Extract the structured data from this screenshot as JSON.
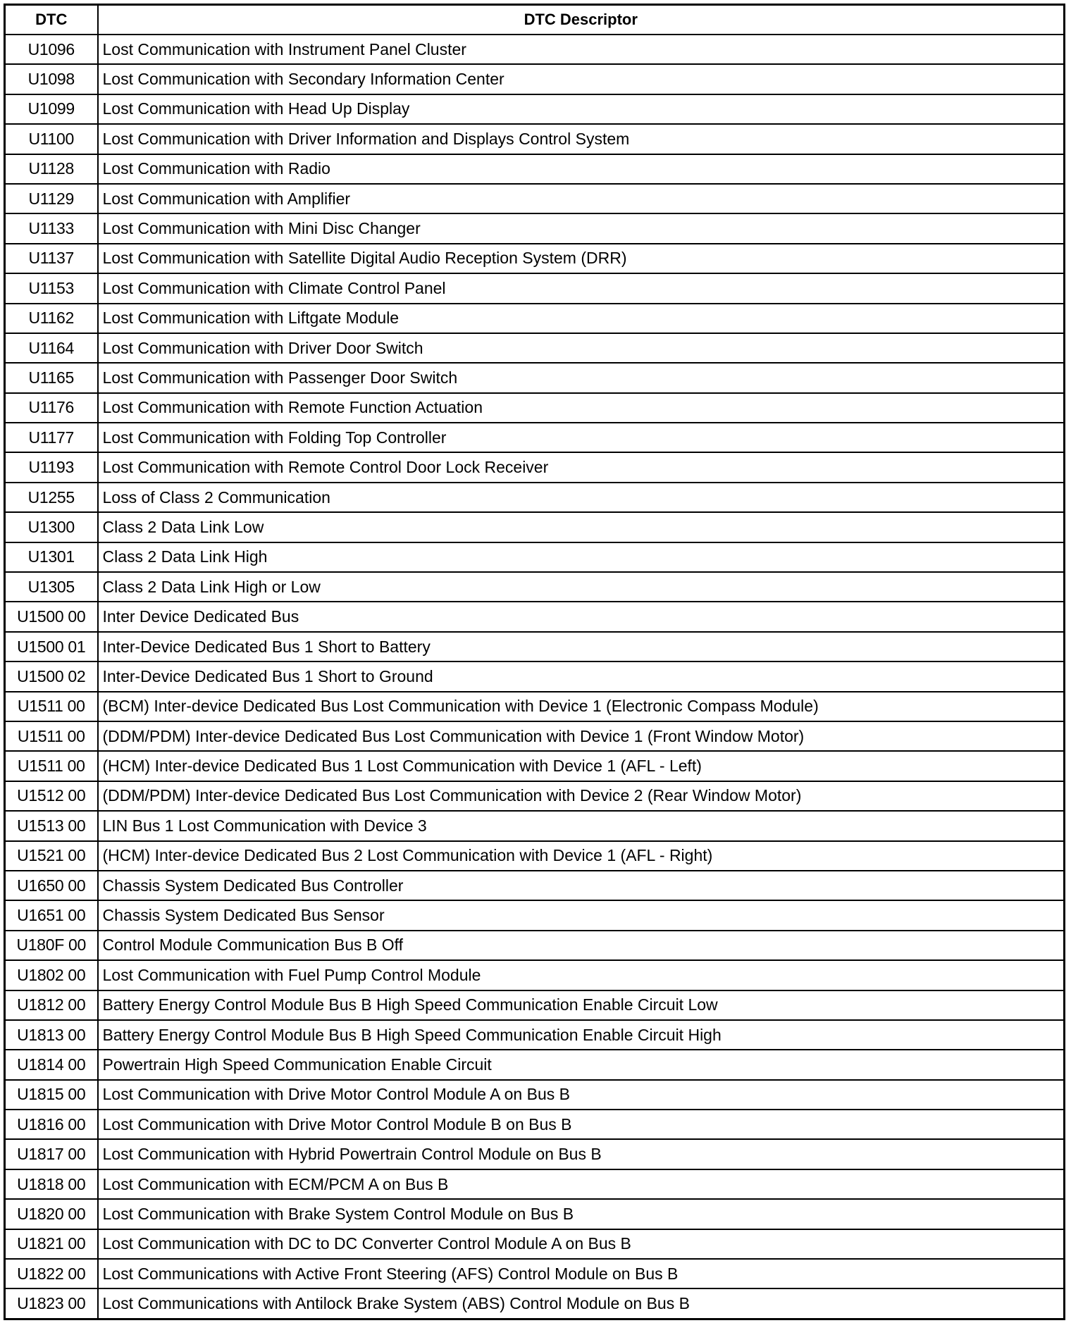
{
  "table": {
    "headers": [
      "DTC",
      "DTC Descriptor"
    ],
    "rows": [
      [
        "U1096",
        "Lost Communication with Instrument Panel Cluster"
      ],
      [
        "U1098",
        "Lost Communication with Secondary Information Center"
      ],
      [
        "U1099",
        "Lost Communication with Head Up Display"
      ],
      [
        "U1100",
        "Lost Communication with Driver Information and Displays Control System"
      ],
      [
        "U1128",
        "Lost Communication with Radio"
      ],
      [
        "U1129",
        "Lost Communication with Amplifier"
      ],
      [
        "U1133",
        "Lost Communication with Mini Disc Changer"
      ],
      [
        "U1137",
        "Lost Communication with Satellite Digital Audio Reception System (DRR)"
      ],
      [
        "U1153",
        "Lost Communication with Climate Control Panel"
      ],
      [
        "U1162",
        "Lost Communication with Liftgate Module"
      ],
      [
        "U1164",
        "Lost Communication with Driver Door Switch"
      ],
      [
        "U1165",
        "Lost Communication with Passenger Door Switch"
      ],
      [
        "U1176",
        "Lost Communication with Remote Function Actuation"
      ],
      [
        "U1177",
        "Lost Communication with Folding Top Controller"
      ],
      [
        "U1193",
        "Lost Communication with Remote Control Door Lock Receiver"
      ],
      [
        "U1255",
        "Loss of Class 2 Communication"
      ],
      [
        "U1300",
        "Class 2 Data Link Low"
      ],
      [
        "U1301",
        "Class 2 Data Link High"
      ],
      [
        "U1305",
        "Class 2 Data Link High or Low"
      ],
      [
        "U1500 00",
        "Inter Device Dedicated Bus"
      ],
      [
        "U1500 01",
        "Inter-Device Dedicated Bus 1 Short to Battery"
      ],
      [
        "U1500 02",
        "Inter-Device Dedicated Bus 1 Short to Ground"
      ],
      [
        "U1511 00",
        "(BCM) Inter-device Dedicated Bus Lost Communication with Device 1 (Electronic Compass Module)"
      ],
      [
        "U1511 00",
        "(DDM/PDM) Inter-device Dedicated Bus Lost Communication with Device 1 (Front Window Motor)"
      ],
      [
        "U1511 00",
        "(HCM) Inter-device Dedicated Bus 1 Lost Communication with Device 1 (AFL - Left)"
      ],
      [
        "U1512 00",
        "(DDM/PDM) Inter-device Dedicated Bus Lost Communication with Device 2 (Rear Window Motor)"
      ],
      [
        "U1513 00",
        "LIN Bus 1 Lost Communication with Device 3"
      ],
      [
        "U1521 00",
        "(HCM) Inter-device Dedicated Bus 2 Lost Communication with Device 1 (AFL - Right)"
      ],
      [
        "U1650 00",
        "Chassis System Dedicated Bus Controller"
      ],
      [
        "U1651 00",
        "Chassis System Dedicated Bus Sensor"
      ],
      [
        "U180F 00",
        "Control Module Communication Bus B Off"
      ],
      [
        "U1802 00",
        "Lost Communication with Fuel Pump Control Module"
      ],
      [
        "U1812 00",
        "Battery Energy Control Module Bus B High Speed Communication Enable Circuit Low"
      ],
      [
        "U1813 00",
        "Battery Energy Control Module Bus B High Speed Communication Enable Circuit High"
      ],
      [
        "U1814 00",
        "Powertrain High Speed Communication Enable Circuit"
      ],
      [
        "U1815 00",
        "Lost Communication with Drive Motor Control Module A on Bus B"
      ],
      [
        "U1816 00",
        "Lost Communication with Drive Motor Control Module B on Bus B"
      ],
      [
        "U1817 00",
        "Lost Communication with Hybrid Powertrain Control Module on Bus B"
      ],
      [
        "U1818 00",
        "Lost Communication with ECM/PCM A on Bus B"
      ],
      [
        "U1820 00",
        "Lost Communication with Brake System Control Module on Bus B"
      ],
      [
        "U1821 00",
        "Lost Communication with DC to DC Converter Control Module A on Bus B"
      ],
      [
        "U1822 00",
        "Lost Communications with Active Front Steering (AFS) Control Module on Bus B"
      ],
      [
        "U1823 00",
        "Lost Communications with Antilock Brake System (ABS) Control Module on Bus B"
      ]
    ]
  }
}
